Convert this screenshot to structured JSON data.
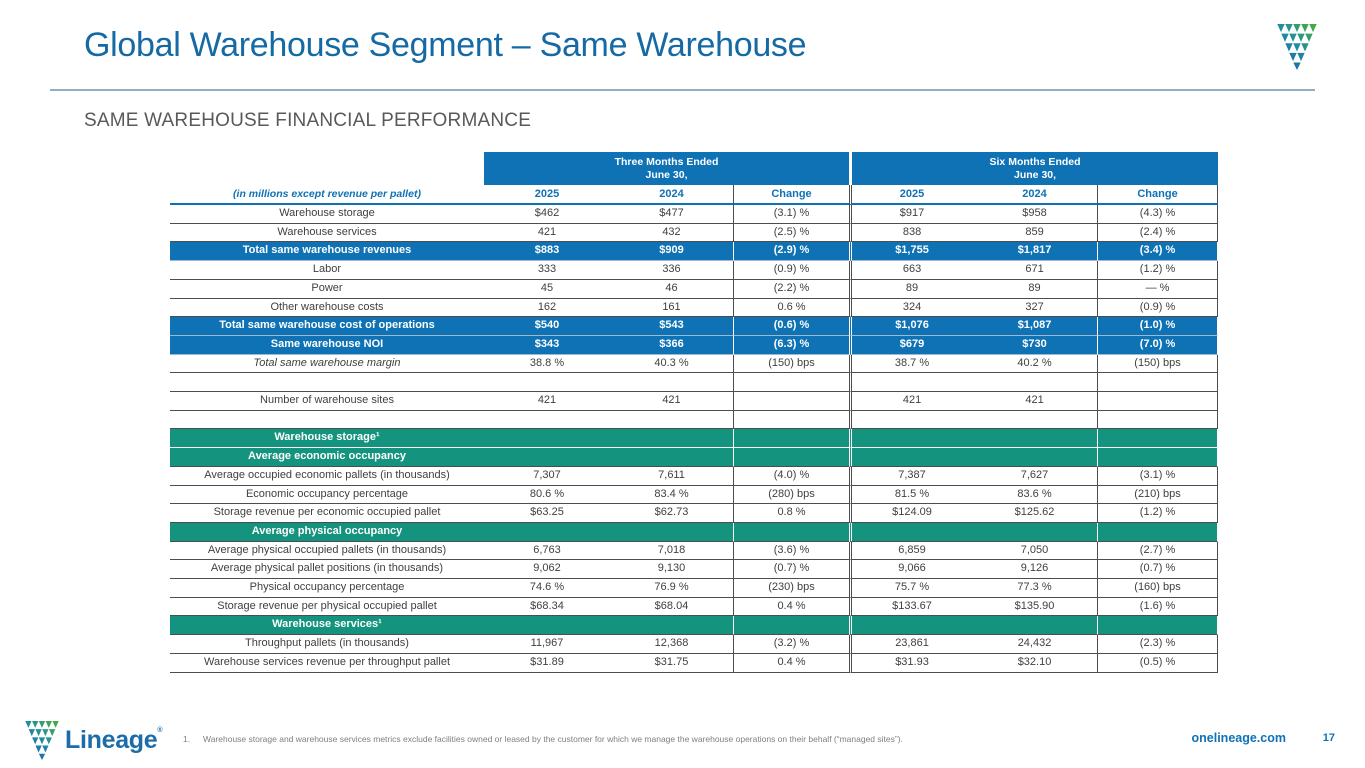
{
  "slide": {
    "title": "Global Warehouse Segment – Same Warehouse",
    "subtitle": "SAME WAREHOUSE FINANCIAL PERFORMANCE",
    "website": "onelineage.com",
    "page_number": "17",
    "logo_text": "Lineage",
    "logo_mark": "®",
    "colors": {
      "brand_blue": "#0E72B5",
      "brand_green": "#14937E",
      "title_blue": "#1569A4"
    },
    "footnote": {
      "number": "1.",
      "text": "Warehouse storage and warehouse services metrics exclude facilities owned or leased by the customer for which we manage the warehouse operations on their behalf (“managed sites”)."
    }
  },
  "table": {
    "corner_label": "(in millions except revenue per pallet)",
    "group_headers": [
      {
        "line1": "Three Months Ended",
        "line2": "June 30,"
      },
      {
        "line1": "Six Months Ended",
        "line2": "June 30,"
      }
    ],
    "col_headers": [
      "2025",
      "2024",
      "Change",
      "2025",
      "2024",
      "Change"
    ],
    "rows": [
      {
        "label": "Warehouse storage",
        "style": "plain",
        "values": [
          "$462",
          "$477",
          "(3.1) %",
          "$917",
          "$958",
          "(4.3) %"
        ]
      },
      {
        "label": "Warehouse services",
        "style": "plain",
        "values": [
          "421",
          "432",
          "(2.5) %",
          "838",
          "859",
          "(2.4) %"
        ]
      },
      {
        "label": "Total same warehouse revenues",
        "style": "blue",
        "values": [
          "$883",
          "$909",
          "(2.9) %",
          "$1,755",
          "$1,817",
          "(3.4) %"
        ]
      },
      {
        "label": "Labor",
        "style": "plain",
        "values": [
          "333",
          "336",
          "(0.9) %",
          "663",
          "671",
          "(1.2) %"
        ]
      },
      {
        "label": "Power",
        "style": "plain",
        "values": [
          "45",
          "46",
          "(2.2) %",
          "89",
          "89",
          "— %"
        ]
      },
      {
        "label": "Other warehouse costs",
        "style": "plain",
        "values": [
          "162",
          "161",
          "0.6 %",
          "324",
          "327",
          "(0.9) %"
        ]
      },
      {
        "label": "Total same warehouse cost of operations",
        "style": "blue",
        "values": [
          "$540",
          "$543",
          "(0.6) %",
          "$1,076",
          "$1,087",
          "(1.0) %"
        ]
      },
      {
        "label": "Same warehouse NOI",
        "style": "blue",
        "values": [
          "$343",
          "$366",
          "(6.3) %",
          "$679",
          "$730",
          "(7.0) %"
        ]
      },
      {
        "label": "Total same warehouse margin",
        "style": "italic",
        "values": [
          "38.8 %",
          "40.3 %",
          "(150) bps",
          "38.7 %",
          "40.2 %",
          "(150) bps"
        ]
      },
      {
        "label": "",
        "style": "spacer",
        "values": [
          "",
          "",
          "",
          "",
          "",
          ""
        ]
      },
      {
        "label": "Number of warehouse sites",
        "style": "plain",
        "values": [
          "421",
          "421",
          "",
          "421",
          "421",
          ""
        ]
      },
      {
        "label": "",
        "style": "spacer",
        "values": [
          "",
          "",
          "",
          "",
          "",
          ""
        ]
      },
      {
        "label": "Warehouse storage¹",
        "style": "green",
        "values": [
          "",
          "",
          "",
          "",
          "",
          ""
        ]
      },
      {
        "label": "Average economic occupancy",
        "style": "green",
        "values": [
          "",
          "",
          "",
          "",
          "",
          ""
        ]
      },
      {
        "label": "Average occupied economic pallets (in thousands)",
        "style": "plain",
        "values": [
          "7,307",
          "7,611",
          "(4.0) %",
          "7,387",
          "7,627",
          "(3.1) %"
        ]
      },
      {
        "label": "Economic occupancy percentage",
        "style": "plain",
        "values": [
          "80.6 %",
          "83.4 %",
          "(280) bps",
          "81.5 %",
          "83.6 %",
          "(210) bps"
        ]
      },
      {
        "label": "Storage revenue per economic occupied pallet",
        "style": "plain",
        "values": [
          "$63.25",
          "$62.73",
          "0.8 %",
          "$124.09",
          "$125.62",
          "(1.2) %"
        ]
      },
      {
        "label": "Average physical occupancy",
        "style": "green",
        "values": [
          "",
          "",
          "",
          "",
          "",
          ""
        ]
      },
      {
        "label": "Average physical occupied pallets (in thousands)",
        "style": "plain",
        "values": [
          "6,763",
          "7,018",
          "(3.6) %",
          "6,859",
          "7,050",
          "(2.7) %"
        ]
      },
      {
        "label": "Average physical pallet positions (in thousands)",
        "style": "plain",
        "values": [
          "9,062",
          "9,130",
          "(0.7) %",
          "9,066",
          "9,126",
          "(0.7) %"
        ]
      },
      {
        "label": "Physical occupancy percentage",
        "style": "plain",
        "values": [
          "74.6 %",
          "76.9 %",
          "(230) bps",
          "75.7 %",
          "77.3 %",
          "(160) bps"
        ]
      },
      {
        "label": "Storage revenue per physical occupied pallet",
        "style": "plain",
        "values": [
          "$68.34",
          "$68.04",
          "0.4 %",
          "$133.67",
          "$135.90",
          "(1.6) %"
        ]
      },
      {
        "label": "Warehouse services¹",
        "style": "green",
        "values": [
          "",
          "",
          "",
          "",
          "",
          ""
        ]
      },
      {
        "label": "Throughput pallets (in thousands)",
        "style": "plain",
        "values": [
          "11,967",
          "12,368",
          "(3.2) %",
          "23,861",
          "24,432",
          "(2.3) %"
        ]
      },
      {
        "label": "Warehouse services revenue per throughput pallet",
        "style": "plain",
        "values": [
          "$31.89",
          "$31.75",
          "0.4 %",
          "$31.93",
          "$32.10",
          "(0.5) %"
        ]
      }
    ]
  }
}
